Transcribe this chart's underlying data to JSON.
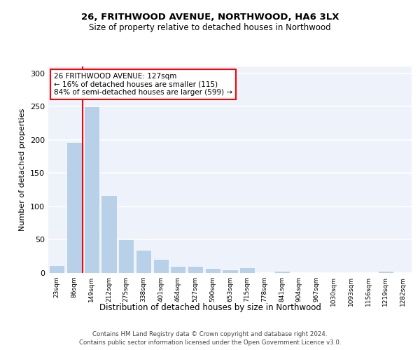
{
  "title1": "26, FRITHWOOD AVENUE, NORTHWOOD, HA6 3LX",
  "title2": "Size of property relative to detached houses in Northwood",
  "xlabel": "Distribution of detached houses by size in Northwood",
  "ylabel": "Number of detached properties",
  "bar_labels": [
    "23sqm",
    "86sqm",
    "149sqm",
    "212sqm",
    "275sqm",
    "338sqm",
    "401sqm",
    "464sqm",
    "527sqm",
    "590sqm",
    "653sqm",
    "715sqm",
    "778sqm",
    "841sqm",
    "904sqm",
    "967sqm",
    "1030sqm",
    "1093sqm",
    "1156sqm",
    "1219sqm",
    "1282sqm"
  ],
  "bar_values": [
    12,
    197,
    250,
    117,
    50,
    35,
    21,
    10,
    10,
    7,
    5,
    8,
    0,
    3,
    0,
    0,
    0,
    0,
    0,
    3,
    0
  ],
  "bar_color": "#b8d0e8",
  "annotation_text": "26 FRITHWOOD AVENUE: 127sqm\n← 16% of detached houses are smaller (115)\n84% of semi-detached houses are larger (599) →",
  "annotation_box_color": "white",
  "annotation_box_edge": "red",
  "vline_x": 1.5,
  "vline_color": "red",
  "ylim": [
    0,
    310
  ],
  "yticks": [
    0,
    50,
    100,
    150,
    200,
    250,
    300
  ],
  "background_color": "#eef2fb",
  "grid_color": "white",
  "footer1": "Contains HM Land Registry data © Crown copyright and database right 2024.",
  "footer2": "Contains public sector information licensed under the Open Government Licence v3.0."
}
